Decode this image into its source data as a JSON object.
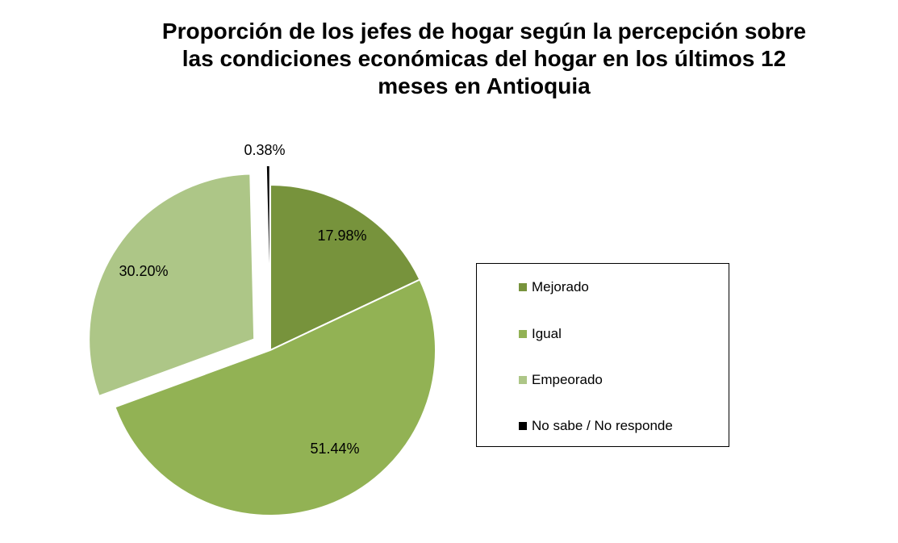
{
  "chart_data": {
    "type": "pie",
    "title_lines": [
      "Proporción de los jefes de  hogar según la percepción sobre",
      "las condiciones económicas del hogar en los últimos 12",
      "meses en Antioquia"
    ],
    "categories": [
      "Mejorado",
      "Igual",
      "Empeorado",
      "No sabe / No responde"
    ],
    "values": [
      17.98,
      51.44,
      30.2,
      0.38
    ],
    "data_labels": [
      "17.98%",
      "51.44%",
      "30.20%",
      "0.38%"
    ],
    "colors": [
      "#77933c",
      "#92b254",
      "#adc687",
      "#000000"
    ],
    "exploded": [
      "Empeorado",
      "No sabe / No responde"
    ],
    "legend_position": "right"
  }
}
